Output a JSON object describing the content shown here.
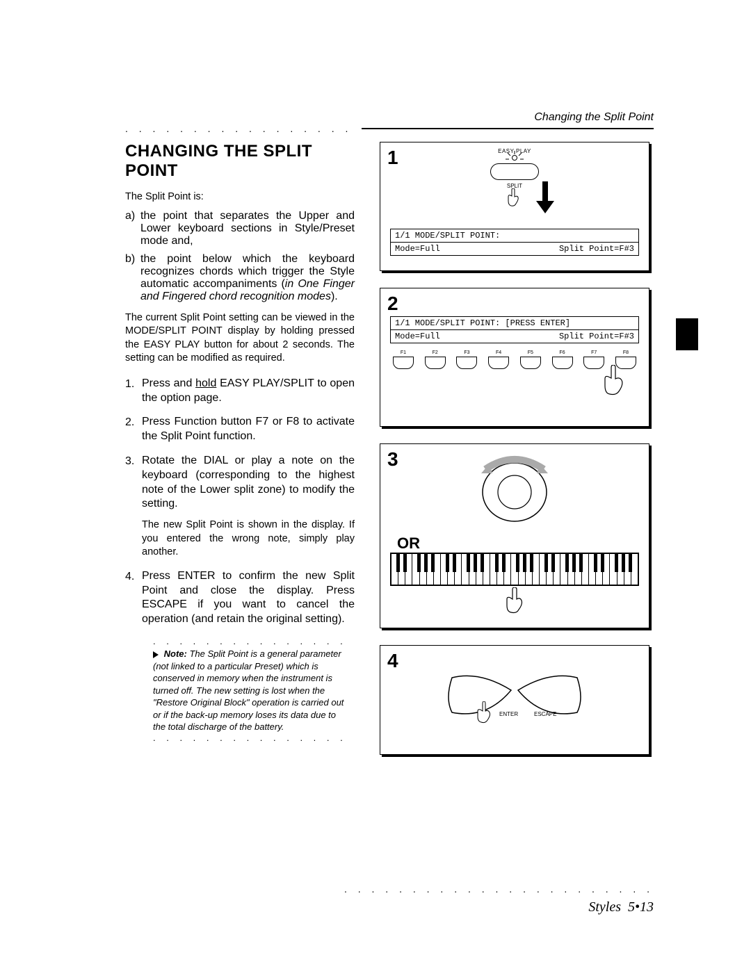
{
  "header": {
    "running_title": "Changing the Split Point"
  },
  "heading": "CHANGING THE SPLIT POINT",
  "intro": "The Split Point is:",
  "definitions": [
    {
      "letter": "a)",
      "text_pre": "the point that separates the Upper and Lower keyboard sections in Style/Preset mode and,"
    },
    {
      "letter": "b)",
      "text_pre": "the point below which the keyboard recognizes chords which trigger the Style automatic accompaniments (",
      "text_italic": "in One Finger and Fingered chord recognition modes",
      "text_post": ")."
    }
  ],
  "paragraph": "The current Split Point setting can be viewed in the MODE/SPLIT POINT display by holding pressed the EASY PLAY button for about 2 seconds.  The setting can be modified as required.",
  "steps": [
    {
      "head_pre": "Press and ",
      "head_u": "hold",
      "head_post": " EASY PLAY/SPLIT to open the option page."
    },
    {
      "head": "Press Function button F7 or F8 to activate the Split Point function."
    },
    {
      "head": "Rotate the DIAL or play a note on the keyboard (corresponding to the highest note of the Lower split zone) to modify the setting.",
      "sub": "The new Split Point is shown in the display. If you entered the wrong note, simply play another."
    },
    {
      "head": "Press ENTER to confirm the new Split Point and close the display.  Press ESCAPE if you want to cancel the operation (and retain the original setting)."
    }
  ],
  "note": {
    "label": "Note:",
    "text": "  The Split Point is a general parameter (not linked to a particular Preset) which is conserved in memory when the instrument is turned off.  The new setting is lost when the \"Restore Original Block\" operation is carried out or if the back-up memory loses its  data due to the total discharge of the battery."
  },
  "panel1": {
    "num": "1",
    "easyplay": "EASY PLAY",
    "split": "SPLIT",
    "lcd_line1": "1/1 MODE/SPLIT POINT:",
    "lcd_mode": "Mode=Full",
    "lcd_split": "Split Point=F#3"
  },
  "panel2": {
    "num": "2",
    "lcd_line1": "1/1 MODE/SPLIT POINT: [PRESS ENTER]",
    "lcd_mode": "Mode=Full",
    "lcd_split": "Split Point=F#3",
    "fkeys": [
      "F1",
      "F2",
      "F3",
      "F4",
      "F5",
      "F6",
      "F7",
      "F8"
    ]
  },
  "panel3": {
    "num": "3",
    "or": "OR"
  },
  "panel4": {
    "num": "4",
    "enter": "ENTER",
    "escape": "ESCAPE"
  },
  "footer": {
    "section": "Styles",
    "page": "5•13"
  },
  "style": {
    "page_bg": "#ffffff",
    "text_color": "#000000",
    "heading_fontsize_pt": 18,
    "body_fontsize_pt": 11,
    "step_fontsize_pt": 12,
    "note_fontsize_pt": 10,
    "footer_fontsize_pt": 15,
    "lcd_font": "monospace",
    "panel_border_color": "#000000",
    "panel_shadow_color": "#000000"
  }
}
